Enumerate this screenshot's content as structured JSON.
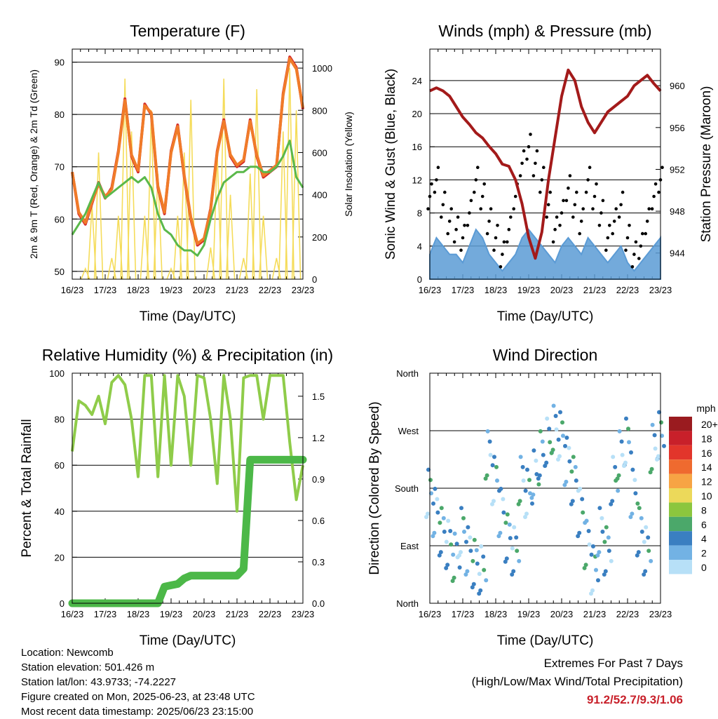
{
  "x_ticks": [
    "16/23",
    "17/23",
    "18/23",
    "19/23",
    "20/23",
    "21/23",
    "22/23",
    "23/23"
  ],
  "xlabel": "Time (Day/UTC)",
  "chart_data": [
    {
      "type": "line",
      "title": "Temperature (F)",
      "xlabel": "Time (Day/UTC)",
      "ylabel": "2m & 9m T (Red, Orange) & 2m Td (Green)",
      "y2label": "Solar Insolation (Yellow)",
      "ylim": [
        48.5,
        92.5
      ],
      "y2lim": [
        0,
        1090
      ],
      "yticks": [
        50,
        60,
        70,
        80,
        90
      ],
      "y2ticks": [
        0,
        200,
        400,
        600,
        800,
        1000
      ],
      "x_days": [
        0,
        0.2,
        0.4,
        0.6,
        0.8,
        1.0,
        1.2,
        1.4,
        1.6,
        1.8,
        2.0,
        2.2,
        2.4,
        2.6,
        2.8,
        3.0,
        3.2,
        3.4,
        3.6,
        3.8,
        4.0,
        4.2,
        4.4,
        4.6,
        4.8,
        5.0,
        5.2,
        5.4,
        5.6,
        5.8,
        6.0,
        6.2,
        6.4,
        6.6,
        6.8,
        7.0
      ],
      "series": [
        {
          "values": [
            69,
            61,
            59,
            63,
            67,
            64,
            66,
            73,
            83,
            72,
            69,
            82,
            80,
            66,
            61,
            73,
            78,
            68,
            60,
            55,
            56,
            62,
            73,
            79,
            72,
            70,
            71,
            79,
            72,
            68,
            69,
            70,
            84,
            91,
            89,
            81
          ],
          "color": "#d42a2a"
        },
        {
          "values": [
            69,
            61.3,
            59.3,
            63.3,
            66.7,
            64.3,
            65.7,
            72.7,
            82.7,
            72.3,
            69.3,
            81.7,
            80.3,
            66.3,
            61.3,
            72.7,
            77.7,
            68.3,
            60.3,
            55.3,
            56.3,
            61.7,
            72.7,
            78.7,
            72.3,
            70.3,
            71.3,
            78.7,
            72.3,
            68.3,
            69.3,
            70.3,
            83.7,
            90.7,
            88.7,
            81.3
          ],
          "color": "#f07b29"
        },
        {
          "values": [
            57,
            59,
            61,
            64,
            67,
            64,
            65,
            66,
            67,
            68,
            67,
            68,
            66,
            61,
            58,
            57,
            55,
            54,
            54,
            53,
            55,
            60,
            64,
            67,
            68,
            69,
            69,
            70,
            70,
            69,
            69,
            70,
            72,
            75,
            68,
            66
          ],
          "color": "#5ab84a"
        }
      ],
      "insolation": {
        "values": [
          0,
          0,
          50,
          350,
          600,
          0,
          100,
          300,
          950,
          700,
          0,
          300,
          800,
          500,
          0,
          50,
          300,
          600,
          850,
          0,
          0,
          150,
          600,
          950,
          400,
          0,
          100,
          500,
          900,
          300,
          0,
          100,
          700,
          1000,
          800,
          0
        ],
        "color": "#f5dc5a"
      }
    },
    {
      "type": "scatter",
      "title": "Winds (mph) & Pressure (mb)",
      "xlabel": "Time (Day/UTC)",
      "ylabel": "Sonic Wind & Gust (Blue, Black)",
      "y2label": "Station Pressure (Maroon)",
      "ylim": [
        0,
        27.8
      ],
      "y2lim": [
        941.5,
        963.5
      ],
      "yticks": [
        0,
        4,
        8,
        12,
        16,
        20,
        24
      ],
      "y2ticks": [
        944,
        948,
        952,
        956,
        960
      ],
      "x_days": [
        0,
        0.2,
        0.4,
        0.6,
        0.8,
        1.0,
        1.2,
        1.4,
        1.6,
        1.8,
        2.0,
        2.2,
        2.4,
        2.6,
        2.8,
        3.0,
        3.2,
        3.4,
        3.6,
        3.8,
        4.0,
        4.2,
        4.4,
        4.6,
        4.8,
        5.0,
        5.2,
        5.4,
        5.6,
        5.8,
        6.0,
        6.2,
        6.4,
        6.6,
        6.8,
        7.0
      ],
      "series": [
        {
          "values": [
            3,
            5,
            4,
            3,
            3,
            2,
            4,
            6,
            5,
            3,
            2,
            1,
            2,
            3,
            5,
            6,
            5,
            4,
            3,
            2,
            4,
            5,
            4,
            3,
            5,
            4,
            3,
            2,
            3,
            4,
            2,
            1,
            2,
            3,
            4,
            5
          ],
          "color": "#5b9bd5"
        },
        {
          "values": [
            10,
            12,
            9,
            7,
            6,
            5,
            8,
            12,
            10,
            7,
            5,
            3,
            6,
            10,
            14,
            16,
            14,
            12,
            9,
            6,
            8,
            11,
            9,
            7,
            12,
            10,
            8,
            5,
            7,
            9,
            5,
            3,
            4,
            7,
            10,
            12
          ],
          "color": "#000000"
        }
      ],
      "pressure": {
        "values": [
          959.5,
          959.8,
          959.5,
          959,
          958,
          957,
          956.3,
          955.5,
          955,
          954.2,
          953.5,
          952.5,
          952.3,
          951,
          948.7,
          945.5,
          943.5,
          946,
          951,
          955,
          959,
          961.5,
          960.5,
          958,
          956.5,
          955.5,
          956.5,
          957.5,
          958,
          958.5,
          959,
          960,
          960.5,
          961,
          960.2,
          959.5
        ],
        "color": "#a31a1a"
      }
    },
    {
      "type": "line",
      "title": "Relative Humidity (%) & Precipitation (in)",
      "xlabel": "Time (Day/UTC)",
      "ylabel": "Percent & Total Rainfall",
      "ylim": [
        0,
        100
      ],
      "y2lim": [
        0,
        1.667
      ],
      "yticks": [
        0,
        20,
        40,
        60,
        80,
        100
      ],
      "y2ticks": [
        "0.0",
        "0.3",
        "0.6",
        "0.9",
        "1.2",
        "1.5"
      ],
      "x_days": [
        0,
        0.2,
        0.4,
        0.6,
        0.8,
        1.0,
        1.2,
        1.4,
        1.6,
        1.8,
        2.0,
        2.2,
        2.4,
        2.6,
        2.8,
        3.0,
        3.2,
        3.4,
        3.6,
        3.8,
        4.0,
        4.2,
        4.4,
        4.6,
        4.8,
        5.0,
        5.2,
        5.4,
        5.6,
        5.8,
        6.0,
        6.2,
        6.4,
        6.6,
        6.8,
        7.0
      ],
      "series": [
        {
          "name": "Relative Humidity",
          "values": [
            66,
            88,
            86,
            82,
            90,
            78,
            96,
            99,
            95,
            80,
            55,
            99,
            99,
            55,
            99,
            60,
            99,
            90,
            60,
            99,
            98,
            80,
            52,
            99,
            80,
            40,
            98,
            99,
            99,
            80,
            99,
            99,
            99,
            70,
            45,
            60
          ],
          "color": "#8fcc4a"
        },
        {
          "name": "Total Precipitation",
          "values": [
            0,
            0,
            0,
            0,
            0,
            0,
            0,
            0,
            0,
            0,
            0,
            0,
            0,
            0,
            0.12,
            0.13,
            0.14,
            0.18,
            0.2,
            0.2,
            0.2,
            0.2,
            0.2,
            0.2,
            0.2,
            0.2,
            0.25,
            1.04,
            1.04,
            1.04,
            1.04,
            1.04,
            1.04,
            1.04,
            1.04,
            1.04
          ],
          "color": "#4cb848"
        }
      ]
    },
    {
      "type": "scatter",
      "title": "Wind Direction",
      "xlabel": "Time (Day/UTC)",
      "ylabel": "Direction (Colored By Speed)",
      "ylim": [
        0,
        360
      ],
      "yticks": [
        "North",
        "East",
        "South",
        "West",
        "North"
      ],
      "x_days": [
        0,
        0.2,
        0.4,
        0.6,
        0.8,
        1.0,
        1.2,
        1.4,
        1.6,
        1.8,
        2.0,
        2.2,
        2.4,
        2.6,
        2.8,
        3.0,
        3.2,
        3.4,
        3.6,
        3.8,
        4.0,
        4.2,
        4.4,
        4.6,
        4.8,
        5.0,
        5.2,
        5.4,
        5.6,
        5.8,
        6.0,
        6.2,
        6.4,
        6.6,
        6.8,
        7.0
      ],
      "series": [
        {
          "values": [
            180,
            150,
            120,
            100,
            80,
            120,
            90,
            70,
            60,
            240,
            200,
            150,
            110,
            90,
            200,
            180,
            210,
            240,
            260,
            280,
            270,
            230,
            200,
            150,
            100,
            60,
            120,
            90,
            200,
            240,
            260,
            180,
            120,
            90,
            250,
            270
          ],
          "color": "#4f8fcb"
        }
      ],
      "colorbar": {
        "title": "mph",
        "labels": [
          "20+",
          "18",
          "16",
          "14",
          "12",
          "10",
          "8",
          "6",
          "4",
          "2",
          "0"
        ],
        "colors": [
          "#9a1b1f",
          "#c8202a",
          "#e2352b",
          "#ef6a2f",
          "#f7a444",
          "#ecd95a",
          "#8cc63e",
          "#4ba86a",
          "#3a7fc1",
          "#72b2e4",
          "#b7e0f7"
        ]
      }
    }
  ],
  "footer": {
    "location": "Location: Newcomb",
    "elevation": "Station elevation: 501.426 m",
    "latlon": "Station lat/lon: 43.9733; -74.2227",
    "created": "Figure created on Mon, 2025-06-23, at 23:48 UTC",
    "recent": "Most recent data timestamp: 2025/06/23 23:15:00"
  },
  "extremes": {
    "title": "Extremes For Past 7 Days",
    "subtitle": "(High/Low/Max Wind/Total Precipitation)",
    "values": "91.2/52.7/9.3/1.06"
  }
}
